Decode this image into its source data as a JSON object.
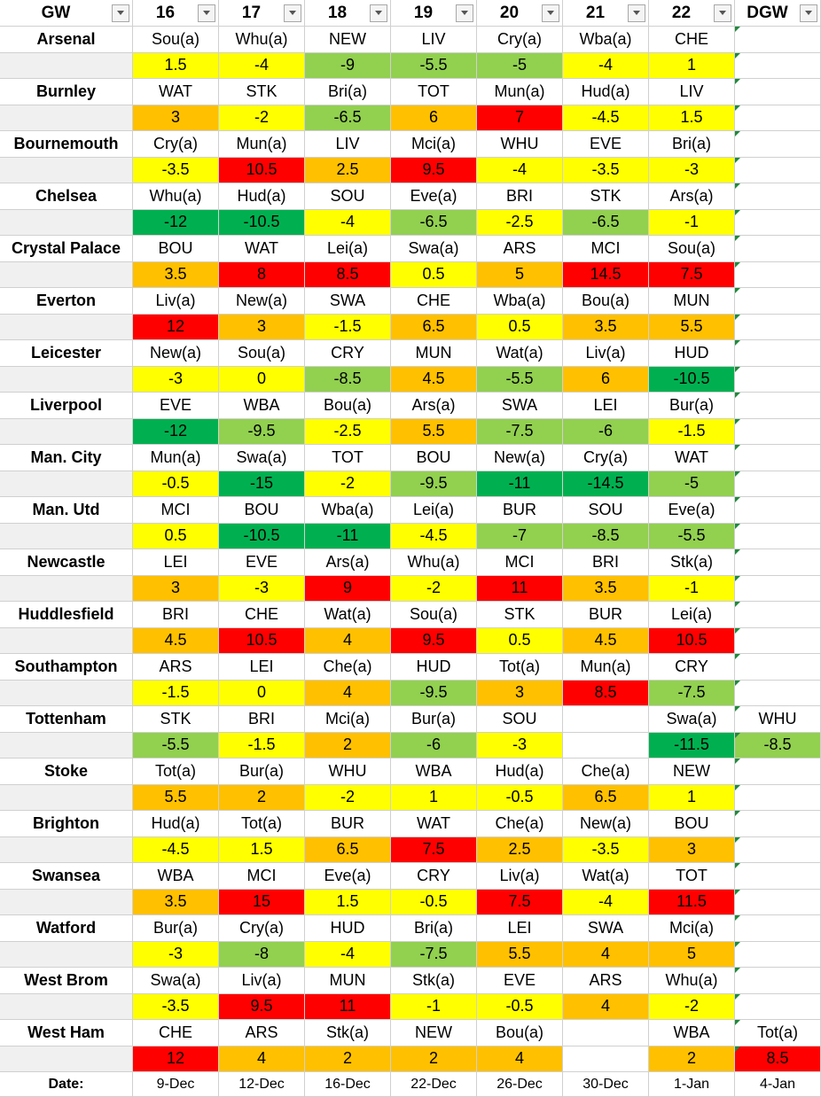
{
  "header": {
    "columns": [
      "GW",
      16,
      17,
      18,
      19,
      20,
      21,
      22,
      "DGW"
    ]
  },
  "teams": [
    {
      "name": "Arsenal",
      "fixtures": [
        "Sou(a)",
        "Whu(a)",
        "NEW",
        "LIV",
        "Cry(a)",
        "Wba(a)",
        "CHE",
        null
      ],
      "scores": [
        1.5,
        -4,
        -9,
        -5.5,
        -5,
        -4,
        1,
        null
      ]
    },
    {
      "name": "Burnley",
      "fixtures": [
        "WAT",
        "STK",
        "Bri(a)",
        "TOT",
        "Mun(a)",
        "Hud(a)",
        "LIV",
        null
      ],
      "scores": [
        3,
        -2,
        -6.5,
        6,
        7,
        -4.5,
        1.5,
        null
      ]
    },
    {
      "name": "Bournemouth",
      "fixtures": [
        "Cry(a)",
        "Mun(a)",
        "LIV",
        "Mci(a)",
        "WHU",
        "EVE",
        "Bri(a)",
        null
      ],
      "scores": [
        -3.5,
        10.5,
        2.5,
        9.5,
        -4,
        -3.5,
        -3,
        null
      ]
    },
    {
      "name": "Chelsea",
      "fixtures": [
        "Whu(a)",
        "Hud(a)",
        "SOU",
        "Eve(a)",
        "BRI",
        "STK",
        "Ars(a)",
        null
      ],
      "scores": [
        -12,
        -10.5,
        -4,
        -6.5,
        -2.5,
        -6.5,
        -1,
        null
      ]
    },
    {
      "name": "Crystal Palace",
      "fixtures": [
        "BOU",
        "WAT",
        "Lei(a)",
        "Swa(a)",
        "ARS",
        "MCI",
        "Sou(a)",
        null
      ],
      "scores": [
        3.5,
        8,
        8.5,
        0.5,
        5,
        14.5,
        7.5,
        null
      ]
    },
    {
      "name": "Everton",
      "fixtures": [
        "Liv(a)",
        "New(a)",
        "SWA",
        "CHE",
        "Wba(a)",
        "Bou(a)",
        "MUN",
        null
      ],
      "scores": [
        12,
        3,
        -1.5,
        6.5,
        0.5,
        3.5,
        5.5,
        null
      ]
    },
    {
      "name": "Leicester",
      "fixtures": [
        "New(a)",
        "Sou(a)",
        "CRY",
        "MUN",
        "Wat(a)",
        "Liv(a)",
        "HUD",
        null
      ],
      "scores": [
        -3,
        0,
        -8.5,
        4.5,
        -5.5,
        6,
        -10.5,
        null
      ]
    },
    {
      "name": "Liverpool",
      "fixtures": [
        "EVE",
        "WBA",
        "Bou(a)",
        "Ars(a)",
        "SWA",
        "LEI",
        "Bur(a)",
        null
      ],
      "scores": [
        -12,
        -9.5,
        -2.5,
        5.5,
        -7.5,
        -6,
        -1.5,
        null
      ]
    },
    {
      "name": "Man. City",
      "fixtures": [
        "Mun(a)",
        "Swa(a)",
        "TOT",
        "BOU",
        "New(a)",
        "Cry(a)",
        "WAT",
        null
      ],
      "scores": [
        -0.5,
        -15,
        -2,
        -9.5,
        -11,
        -14.5,
        -5,
        null
      ]
    },
    {
      "name": "Man. Utd",
      "fixtures": [
        "MCI",
        "BOU",
        "Wba(a)",
        "Lei(a)",
        "BUR",
        "SOU",
        "Eve(a)",
        null
      ],
      "scores": [
        0.5,
        -10.5,
        -11,
        -4.5,
        -7,
        -8.5,
        -5.5,
        null
      ]
    },
    {
      "name": "Newcastle",
      "fixtures": [
        "LEI",
        "EVE",
        "Ars(a)",
        "Whu(a)",
        "MCI",
        "BRI",
        "Stk(a)",
        null
      ],
      "scores": [
        3,
        -3,
        9,
        -2,
        11,
        3.5,
        -1,
        null
      ]
    },
    {
      "name": "Huddlesfield",
      "fixtures": [
        "BRI",
        "CHE",
        "Wat(a)",
        "Sou(a)",
        "STK",
        "BUR",
        "Lei(a)",
        null
      ],
      "scores": [
        4.5,
        10.5,
        4,
        9.5,
        0.5,
        4.5,
        10.5,
        null
      ]
    },
    {
      "name": "Southampton",
      "fixtures": [
        "ARS",
        "LEI",
        "Che(a)",
        "HUD",
        "Tot(a)",
        "Mun(a)",
        "CRY",
        null
      ],
      "scores": [
        -1.5,
        0,
        4,
        -9.5,
        3,
        8.5,
        -7.5,
        null
      ]
    },
    {
      "name": "Tottenham",
      "fixtures": [
        "STK",
        "BRI",
        "Mci(a)",
        "Bur(a)",
        "SOU",
        null,
        "Swa(a)",
        "WHU"
      ],
      "scores": [
        -5.5,
        -1.5,
        2,
        -6,
        -3,
        null,
        -11.5,
        -8.5
      ]
    },
    {
      "name": "Stoke",
      "fixtures": [
        "Tot(a)",
        "Bur(a)",
        "WHU",
        "WBA",
        "Hud(a)",
        "Che(a)",
        "NEW",
        null
      ],
      "scores": [
        5.5,
        2,
        -2,
        1,
        -0.5,
        6.5,
        1,
        null
      ]
    },
    {
      "name": "Brighton",
      "fixtures": [
        "Hud(a)",
        "Tot(a)",
        "BUR",
        "WAT",
        "Che(a)",
        "New(a)",
        "BOU",
        null
      ],
      "scores": [
        -4.5,
        1.5,
        6.5,
        7.5,
        2.5,
        -3.5,
        3,
        null
      ]
    },
    {
      "name": "Swansea",
      "fixtures": [
        "WBA",
        "MCI",
        "Eve(a)",
        "CRY",
        "Liv(a)",
        "Wat(a)",
        "TOT",
        null
      ],
      "scores": [
        3.5,
        15,
        1.5,
        -0.5,
        7.5,
        -4,
        11.5,
        null
      ]
    },
    {
      "name": "Watford",
      "fixtures": [
        "Bur(a)",
        "Cry(a)",
        "HUD",
        "Bri(a)",
        "LEI",
        "SWA",
        "Mci(a)",
        null
      ],
      "scores": [
        -3,
        -8,
        -4,
        -7.5,
        5.5,
        4,
        5,
        null
      ]
    },
    {
      "name": "West Brom",
      "fixtures": [
        "Swa(a)",
        "Liv(a)",
        "MUN",
        "Stk(a)",
        "EVE",
        "ARS",
        "Whu(a)",
        null
      ],
      "scores": [
        -3.5,
        9.5,
        11,
        -1,
        -0.5,
        4,
        -2,
        null
      ]
    },
    {
      "name": "West Ham",
      "fixtures": [
        "CHE",
        "ARS",
        "Stk(a)",
        "NEW",
        "Bou(a)",
        null,
        "WBA",
        "Tot(a)"
      ],
      "scores": [
        12,
        4,
        2,
        2,
        4,
        null,
        2,
        8.5
      ]
    }
  ],
  "dates": {
    "label": "Date:",
    "values": [
      "9-Dec",
      "12-Dec",
      "16-Dec",
      "22-Dec",
      "26-Dec",
      "30-Dec",
      "1-Jan",
      "4-Jan"
    ]
  }
}
